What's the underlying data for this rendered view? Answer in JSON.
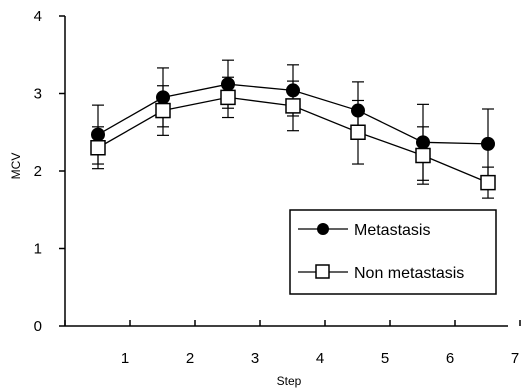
{
  "chart_data": {
    "type": "line",
    "xlabel": "Step",
    "ylabel": "MCV",
    "categories": [
      "1",
      "2",
      "3",
      "4",
      "5",
      "6",
      "7"
    ],
    "y_ticks": [
      "0",
      "1",
      "2",
      "3",
      "4"
    ],
    "ylim": [
      0,
      4
    ],
    "grid": false,
    "legend_position": "bottom-right",
    "series": [
      {
        "name": "Metastasis",
        "marker": "filled-circle",
        "color": "#000000",
        "values": [
          2.47,
          2.95,
          3.12,
          3.04,
          2.78,
          2.37,
          2.35
        ],
        "error": [
          0.38,
          0.38,
          0.31,
          0.33,
          0.37,
          0.49,
          0.45
        ]
      },
      {
        "name": "Non metastasis",
        "marker": "open-square",
        "color": "#000000",
        "values": [
          2.3,
          2.78,
          2.95,
          2.84,
          2.5,
          2.2,
          1.85
        ],
        "error": [
          0.27,
          0.32,
          0.26,
          0.32,
          0.41,
          0.37,
          0.2
        ]
      }
    ]
  }
}
